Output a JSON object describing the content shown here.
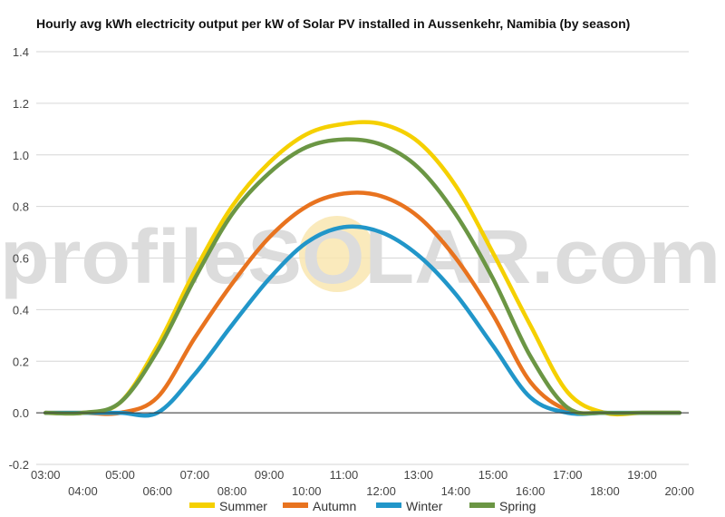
{
  "watermark": "profileSOLAR.com",
  "chart_data": {
    "type": "line",
    "title": "Hourly avg kWh electricity output per kW of Solar PV installed in Aussenkehr, Namibia (by season)",
    "xlabel": "",
    "ylabel": "",
    "ylim": [
      -0.2,
      1.4
    ],
    "yticks": [
      -0.2,
      0.0,
      0.2,
      0.4,
      0.6,
      0.8,
      1.0,
      1.2,
      1.4
    ],
    "x_range": [
      2.75,
      20.25
    ],
    "x_tick_labels": [
      "03:00",
      "04:00",
      "05:00",
      "06:00",
      "07:00",
      "08:00",
      "09:00",
      "10:00",
      "11:00",
      "12:00",
      "13:00",
      "14:00",
      "15:00",
      "16:00",
      "17:00",
      "18:00",
      "19:00",
      "20:00"
    ],
    "grid": true,
    "legend_position": "bottom",
    "x": [
      "03:00",
      "04:00",
      "05:00",
      "06:00",
      "07:00",
      "08:00",
      "09:00",
      "10:00",
      "11:00",
      "12:00",
      "13:00",
      "14:00",
      "15:00",
      "16:00",
      "17:00",
      "18:00",
      "19:00",
      "20:00"
    ],
    "series": [
      {
        "name": "Summer",
        "color": "#f5d000",
        "values": [
          0.0,
          0.0,
          0.04,
          0.26,
          0.55,
          0.8,
          0.97,
          1.08,
          1.12,
          1.12,
          1.05,
          0.88,
          0.62,
          0.34,
          0.08,
          0.0,
          0.0,
          0.0
        ]
      },
      {
        "name": "Autumn",
        "color": "#e8731f",
        "values": [
          0.0,
          0.0,
          0.0,
          0.06,
          0.29,
          0.5,
          0.68,
          0.8,
          0.85,
          0.84,
          0.76,
          0.6,
          0.38,
          0.12,
          0.01,
          0.0,
          0.0,
          0.0
        ]
      },
      {
        "name": "Winter",
        "color": "#2196c9",
        "values": [
          0.0,
          0.0,
          0.0,
          0.0,
          0.15,
          0.34,
          0.52,
          0.66,
          0.72,
          0.7,
          0.61,
          0.46,
          0.26,
          0.06,
          0.0,
          0.0,
          0.0,
          0.0
        ]
      },
      {
        "name": "Spring",
        "color": "#6b9644",
        "values": [
          0.0,
          0.0,
          0.04,
          0.24,
          0.52,
          0.77,
          0.93,
          1.03,
          1.06,
          1.04,
          0.95,
          0.77,
          0.52,
          0.22,
          0.02,
          0.0,
          0.0,
          0.0
        ]
      }
    ]
  }
}
